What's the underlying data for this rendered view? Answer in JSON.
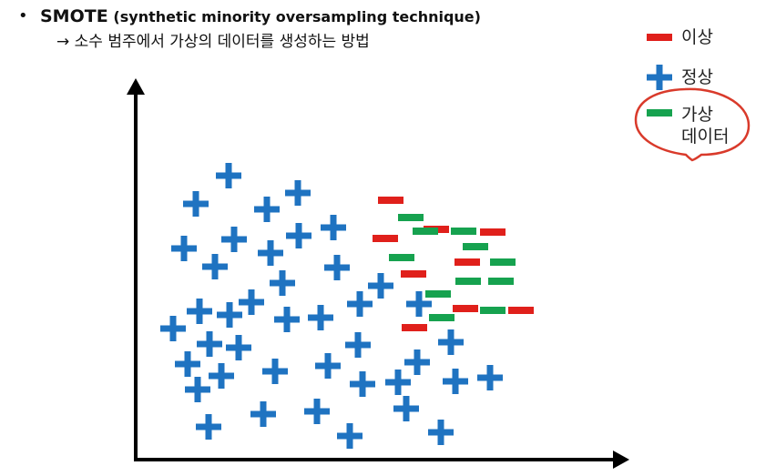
{
  "header": {
    "bullet": "•",
    "title_bold": "SMOTE",
    "title_paren": "(synthetic minority oversampling technique)",
    "subtitle": "→ 소수 범주에서 가상의 데이터를 생성하는 방법"
  },
  "legend": {
    "items": [
      {
        "key": "anomaly",
        "label": "이상",
        "color": "#e0201b"
      },
      {
        "key": "normal",
        "label": "정상",
        "color": "#1f73c1"
      },
      {
        "key": "synthetic",
        "label": "가상\n데이터",
        "color": "#16a24f"
      }
    ],
    "highlight_color": "#d93a2b"
  },
  "chart_data": {
    "type": "scatter",
    "title": "",
    "xlabel": "",
    "ylabel": "",
    "axes_ticks": false,
    "grid": false,
    "legend_position": "top-right",
    "series": [
      {
        "name": "정상",
        "marker": "plus",
        "color": "#1f73c1",
        "points": [
          [
            251,
            193
          ],
          [
            215,
            224
          ],
          [
            293,
            230
          ],
          [
            327,
            212
          ],
          [
            257,
            263
          ],
          [
            202,
            273
          ],
          [
            236,
            293
          ],
          [
            297,
            278
          ],
          [
            328,
            259
          ],
          [
            366,
            250
          ],
          [
            310,
            311
          ],
          [
            370,
            294
          ],
          [
            276,
            332
          ],
          [
            219,
            342
          ],
          [
            252,
            346
          ],
          [
            190,
            361
          ],
          [
            315,
            351
          ],
          [
            352,
            349
          ],
          [
            395,
            334
          ],
          [
            418,
            314
          ],
          [
            460,
            334
          ],
          [
            230,
            378
          ],
          [
            262,
            382
          ],
          [
            393,
            379
          ],
          [
            495,
            376
          ],
          [
            206,
            400
          ],
          [
            243,
            413
          ],
          [
            217,
            428
          ],
          [
            302,
            408
          ],
          [
            360,
            402
          ],
          [
            458,
            398
          ],
          [
            398,
            422
          ],
          [
            437,
            420
          ],
          [
            500,
            419
          ],
          [
            538,
            415
          ],
          [
            229,
            469
          ],
          [
            289,
            455
          ],
          [
            348,
            452
          ],
          [
            446,
            449
          ],
          [
            384,
            479
          ],
          [
            484,
            475
          ]
        ]
      },
      {
        "name": "이상",
        "marker": "dash",
        "color": "#e0201b",
        "points": [
          [
            429,
            220
          ],
          [
            423,
            262
          ],
          [
            479,
            252
          ],
          [
            541,
            255
          ],
          [
            513,
            288
          ],
          [
            454,
            301
          ],
          [
            511,
            339
          ],
          [
            572,
            341
          ],
          [
            455,
            360
          ]
        ]
      },
      {
        "name": "가상 데이터",
        "marker": "dash",
        "color": "#16a24f",
        "points": [
          [
            451,
            239
          ],
          [
            467,
            254
          ],
          [
            509,
            254
          ],
          [
            522,
            271
          ],
          [
            441,
            283
          ],
          [
            552,
            288
          ],
          [
            514,
            309
          ],
          [
            550,
            309
          ],
          [
            481,
            323
          ],
          [
            485,
            349
          ],
          [
            541,
            341
          ]
        ]
      }
    ]
  }
}
